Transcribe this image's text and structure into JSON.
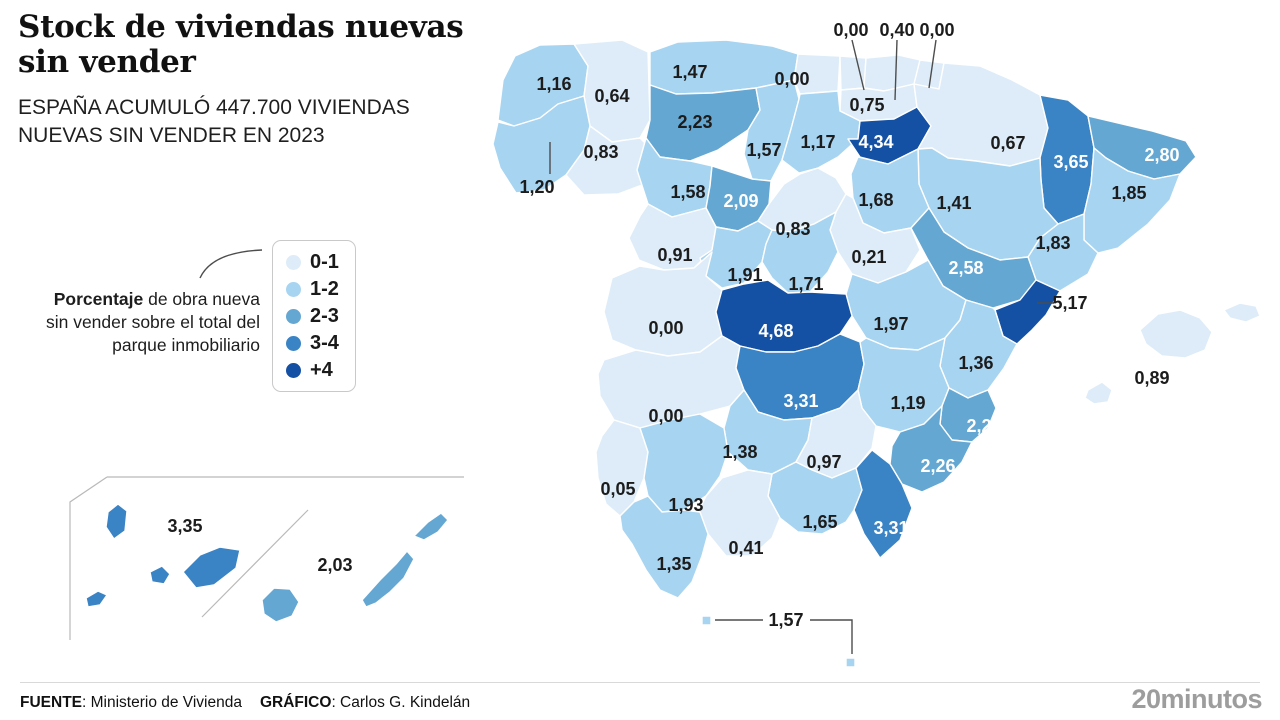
{
  "header": {
    "title_lines": [
      "Stock de viviendas nuevas",
      "sin vender"
    ],
    "subtitle_lines": [
      "ESPAÑA ACUMULÓ 447.700 VIVIENDAS",
      "NUEVAS SIN VENDER EN 2023"
    ]
  },
  "note": {
    "bold": "Porcentaje",
    "rest": " de obra nueva sin vender sobre el total del parque inmobiliario"
  },
  "legend": {
    "items": [
      {
        "label": "0-1",
        "color": "#ddecf8"
      },
      {
        "label": "1-2",
        "color": "#a7d4f0"
      },
      {
        "label": "2-3",
        "color": "#64a7d2"
      },
      {
        "label": "3-4",
        "color": "#3a83c4"
      },
      {
        "label": "+4",
        "color": "#1450a4"
      }
    ]
  },
  "footer": {
    "source_label": "FUENTE",
    "source_text": ": Ministerio de Vivienda",
    "credit_label": "GRÁFICO",
    "credit_text": ": Carlos G. Kindelán",
    "logo": "20minutos"
  },
  "chart_data": {
    "type": "heatmap",
    "subtype": "choropleth-map-spain-provinces",
    "title": "Stock de viviendas nuevas sin vender",
    "subtitle": "España acumuló 447.700 viviendas nuevas sin vender en 2023",
    "metric": "Porcentaje de obra nueva sin vender sobre el total del parque inmobiliario",
    "legend_buckets": [
      "0-1",
      "1-2",
      "2-3",
      "3-4",
      "+4"
    ],
    "regions": [
      {
        "value": "1,16",
        "bucket": 1
      },
      {
        "value": "0,64",
        "bucket": 0
      },
      {
        "value": "1,20",
        "bucket": 1
      },
      {
        "value": "0,83",
        "bucket": 0
      },
      {
        "value": "1,47",
        "bucket": 1
      },
      {
        "value": "0,00",
        "bucket": 0
      },
      {
        "value": "0,00",
        "bucket": 0
      },
      {
        "value": "0,40",
        "bucket": 0
      },
      {
        "value": "0,00",
        "bucket": 0
      },
      {
        "value": "0,75",
        "bucket": 0
      },
      {
        "value": "2,23",
        "bucket": 2
      },
      {
        "value": "1,57",
        "bucket": 1
      },
      {
        "value": "1,17",
        "bucket": 1
      },
      {
        "value": "4,34",
        "bucket": 4
      },
      {
        "value": "0,67",
        "bucket": 0
      },
      {
        "value": "3,65",
        "bucket": 3
      },
      {
        "value": "2,80",
        "bucket": 2
      },
      {
        "value": "1,85",
        "bucket": 1
      },
      {
        "value": "1,83",
        "bucket": 1
      },
      {
        "value": "1,41",
        "bucket": 1
      },
      {
        "value": "1,68",
        "bucket": 1
      },
      {
        "value": "1,58",
        "bucket": 1
      },
      {
        "value": "2,09",
        "bucket": 2
      },
      {
        "value": "0,83",
        "bucket": 0
      },
      {
        "value": "0,21",
        "bucket": 0
      },
      {
        "value": "0,91",
        "bucket": 0
      },
      {
        "value": "1,91",
        "bucket": 1
      },
      {
        "value": "1,71",
        "bucket": 1
      },
      {
        "value": "2,58",
        "bucket": 2
      },
      {
        "value": "5,17",
        "bucket": 4
      },
      {
        "value": "1,97",
        "bucket": 1
      },
      {
        "value": "0,00",
        "bucket": 0
      },
      {
        "value": "4,68",
        "bucket": 4
      },
      {
        "value": "1,36",
        "bucket": 1
      },
      {
        "value": "0,89",
        "bucket": 0
      },
      {
        "value": "0,00",
        "bucket": 0
      },
      {
        "value": "3,31",
        "bucket": 3
      },
      {
        "value": "1,19",
        "bucket": 1
      },
      {
        "value": "2,21",
        "bucket": 2
      },
      {
        "value": "2,26",
        "bucket": 2
      },
      {
        "value": "1,38",
        "bucket": 1
      },
      {
        "value": "0,97",
        "bucket": 0
      },
      {
        "value": "0,05",
        "bucket": 0
      },
      {
        "value": "1,93",
        "bucket": 1
      },
      {
        "value": "1,65",
        "bucket": 1
      },
      {
        "value": "3,31",
        "bucket": 3
      },
      {
        "value": "0,41",
        "bucket": 0
      },
      {
        "value": "1,35",
        "bucket": 1
      },
      {
        "value": "1,57",
        "bucket": 1
      },
      {
        "value": "3,35",
        "bucket": 3
      },
      {
        "value": "2,03",
        "bucket": 2
      }
    ]
  }
}
